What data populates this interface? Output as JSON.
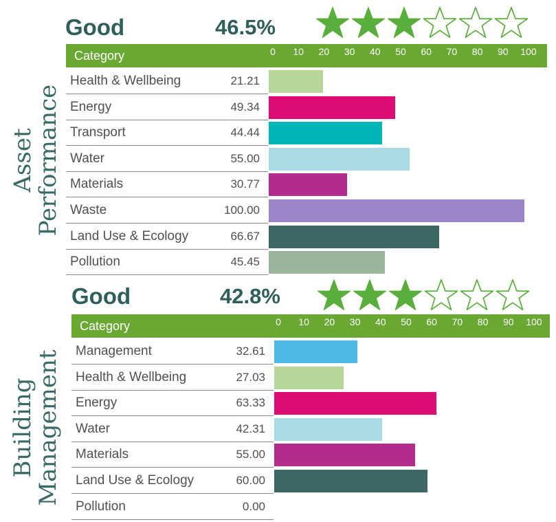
{
  "chart_data": [
    {
      "type": "bar",
      "orientation": "horizontal",
      "title": "Asset Performance",
      "rating": "Good",
      "percent": "46.5%",
      "stars": {
        "filled": 3,
        "total": 6
      },
      "header_label": "Category",
      "ticks": [
        "0",
        "10",
        "20",
        "30",
        "40",
        "50",
        "60",
        "70",
        "80",
        "90",
        "100"
      ],
      "xlim": [
        0,
        100
      ],
      "categories": [
        "Health & Wellbeing",
        "Energy",
        "Transport",
        "Water",
        "Materials",
        "Waste",
        "Land Use & Ecology",
        "Pollution"
      ],
      "values": [
        21.21,
        49.34,
        44.44,
        55.0,
        30.77,
        100.0,
        66.67,
        45.45
      ],
      "value_labels": [
        "21.21",
        "49.34",
        "44.44",
        "55.00",
        "30.77",
        "100.00",
        "66.67",
        "45.45"
      ],
      "colors": [
        "#b8d69a",
        "#dd0b74",
        "#00b5b6",
        "#a9dce5",
        "#b12c8d",
        "#9b85c8",
        "#3c6764",
        "#9ab59c"
      ]
    },
    {
      "type": "bar",
      "orientation": "horizontal",
      "title": "Building Management",
      "rating": "Good",
      "percent": "42.8%",
      "stars": {
        "filled": 3,
        "total": 6
      },
      "header_label": "Category",
      "ticks": [
        "0",
        "10",
        "20",
        "30",
        "40",
        "50",
        "60",
        "70",
        "80",
        "90",
        "100"
      ],
      "xlim": [
        0,
        100
      ],
      "categories": [
        "Management",
        "Health & Wellbeing",
        "Energy",
        "Water",
        "Materials",
        "Land Use & Ecology",
        "Pollution"
      ],
      "values": [
        32.61,
        27.03,
        63.33,
        42.31,
        55.0,
        60.0,
        0.0
      ],
      "value_labels": [
        "32.61",
        "27.03",
        "63.33",
        "42.31",
        "55.00",
        "60.00",
        "0.00"
      ],
      "colors": [
        "#4bb8e6",
        "#b8d69a",
        "#dd0b74",
        "#a9dce5",
        "#b12c8d",
        "#3c6764",
        "#9ab59c"
      ]
    }
  ],
  "colors": {
    "header": "#6aa834",
    "star": "#5aae3c",
    "heading": "#2f5f5a"
  }
}
